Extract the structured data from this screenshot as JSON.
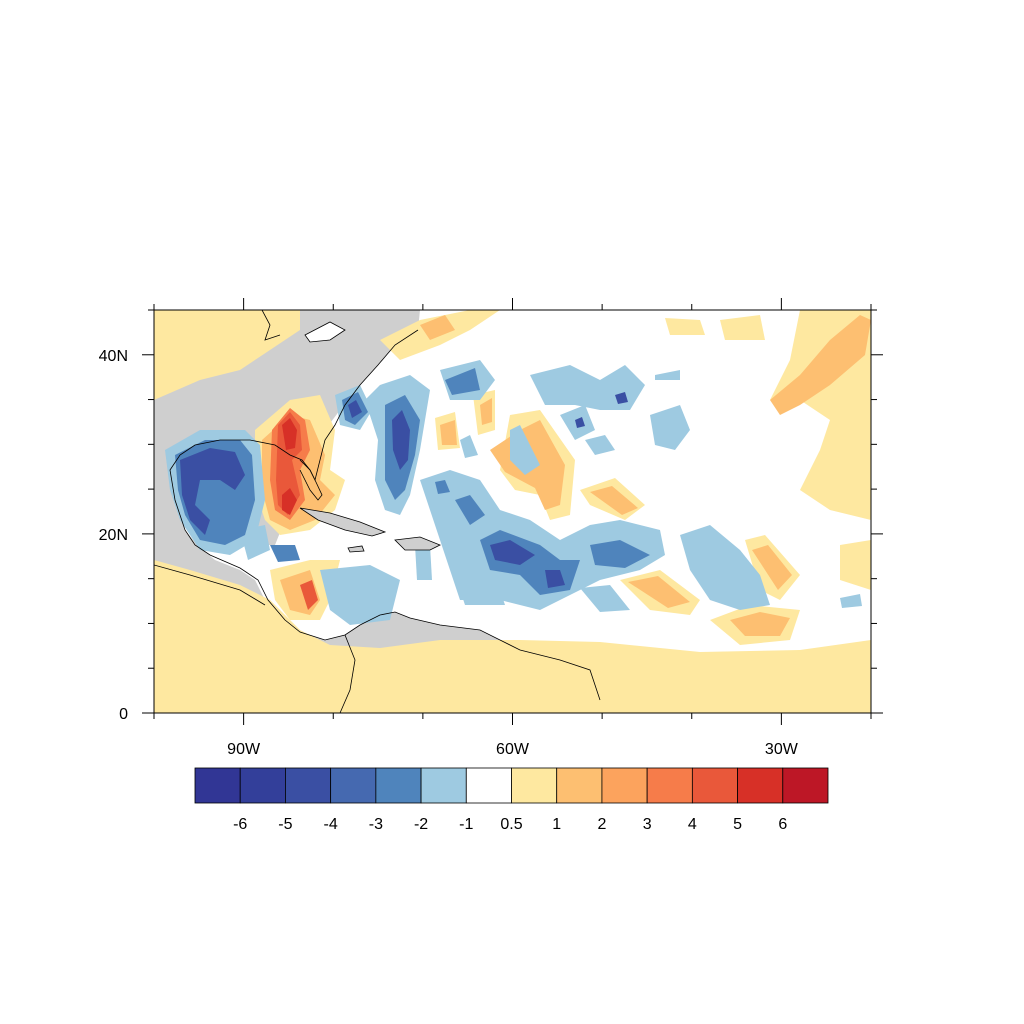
{
  "map": {
    "region": "Tropical North Atlantic, Caribbean and Gulf of Mexico",
    "projection": "cylindrical equidistant",
    "lon_range": [
      -100,
      -20
    ],
    "lat_range": [
      0,
      45
    ],
    "land_color": "#cfcfcf",
    "coastline_color": "#000000",
    "field_shown": "filled contours of an anomaly field (unlabeled)"
  },
  "axes": {
    "x_ticks": [
      {
        "value": -90,
        "label": "90W"
      },
      {
        "value": -60,
        "label": "60W"
      },
      {
        "value": -30,
        "label": "30W"
      }
    ],
    "x_minor_ticks": [
      -100,
      -80,
      -70,
      -50,
      -40,
      -20
    ],
    "y_ticks": [
      {
        "value": 0,
        "label": "0"
      },
      {
        "value": 20,
        "label": "20N"
      },
      {
        "value": 40,
        "label": "40N"
      }
    ],
    "y_minor_ticks": [
      5,
      10,
      15,
      25,
      30,
      35,
      45
    ]
  },
  "colorbar": {
    "orientation": "horizontal",
    "bins": [
      {
        "color": "#313695"
      },
      {
        "color": "#333f9a"
      },
      {
        "color": "#3a4fa3"
      },
      {
        "color": "#4569b0"
      },
      {
        "color": "#4f84bc"
      },
      {
        "color": "#9ecae1"
      },
      {
        "color": "#ffffff"
      },
      {
        "color": "#fee8a0"
      },
      {
        "color": "#fdbf71"
      },
      {
        "color": "#fca35d"
      },
      {
        "color": "#f67c4a"
      },
      {
        "color": "#e9583a"
      },
      {
        "color": "#d73027"
      },
      {
        "color": "#bd1726"
      }
    ],
    "labels": [
      "-6",
      "-5",
      "-4",
      "-3",
      "-2",
      "-1",
      "0.5",
      "1",
      "2",
      "3",
      "4",
      "5",
      "6"
    ]
  },
  "anomaly_regions": [
    {
      "name": "gulf-of-mexico-negative",
      "level": -4,
      "center": [
        -91,
        25
      ]
    },
    {
      "name": "florida-positive",
      "level": 5,
      "center": [
        -83,
        27
      ]
    },
    {
      "name": "western-atlantic-negative",
      "level": -3,
      "center": [
        -72,
        29
      ]
    },
    {
      "name": "caribbean-negative",
      "level": -3,
      "center": [
        -58,
        18
      ]
    },
    {
      "name": "central-atlantic-positive",
      "level": 2,
      "center": [
        -56,
        28
      ]
    },
    {
      "name": "eastern-atlantic-positive",
      "level": 2,
      "center": [
        -27,
        37
      ]
    }
  ]
}
